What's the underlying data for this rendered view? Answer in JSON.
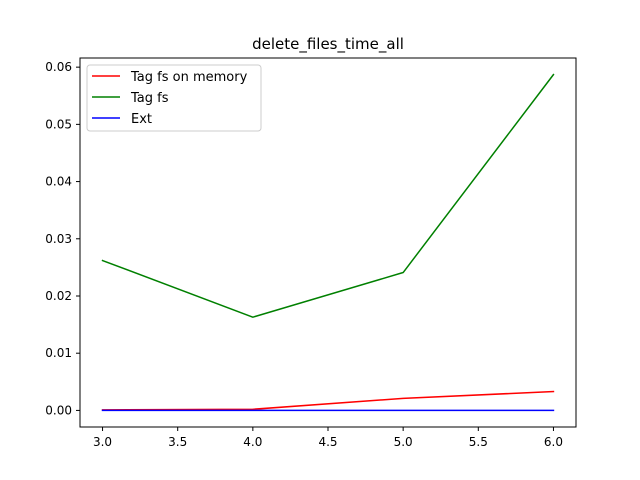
{
  "chart_data": {
    "type": "line",
    "title": "delete_files_time_all",
    "xlabel": "",
    "ylabel": "",
    "x": [
      3.0,
      4.0,
      5.0,
      6.0
    ],
    "xlim": [
      2.85,
      6.15
    ],
    "ylim": [
      -0.0029,
      0.0616
    ],
    "xticks": [
      3.0,
      3.5,
      4.0,
      4.5,
      5.0,
      5.5,
      6.0
    ],
    "xtick_labels": [
      "3.0",
      "3.5",
      "4.0",
      "4.5",
      "5.0",
      "5.5",
      "6.0"
    ],
    "yticks": [
      0.0,
      0.01,
      0.02,
      0.03,
      0.04,
      0.05,
      0.06
    ],
    "ytick_labels": [
      "0.00",
      "0.01",
      "0.02",
      "0.03",
      "0.04",
      "0.05",
      "0.06"
    ],
    "grid": false,
    "legend_position": "upper-left",
    "series": [
      {
        "name": "Tag fs on memory",
        "color": "#ff0000",
        "values": [
          0.0001,
          0.0002,
          0.0021,
          0.0033
        ]
      },
      {
        "name": "Tag fs",
        "color": "#008000",
        "values": [
          0.0262,
          0.0163,
          0.0241,
          0.0587
        ]
      },
      {
        "name": "Ext",
        "color": "#0000ff",
        "values": [
          0.0,
          0.0,
          0.0,
          0.0
        ]
      }
    ]
  }
}
